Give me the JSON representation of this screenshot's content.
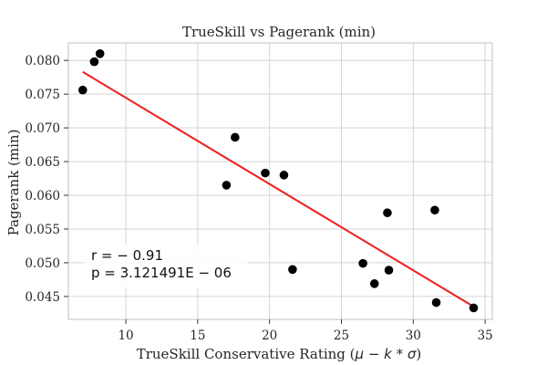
{
  "chart_data": {
    "type": "scatter",
    "title": "TrueSkill vs Pagerank (min)",
    "xlabel_prefix": "TrueSkill Conservative Rating (",
    "xlabel_math": "μ − k * σ",
    "xlabel_suffix": ")",
    "ylabel": "Pagerank (min)",
    "xlim": [
      6.0,
      35.5
    ],
    "ylim": [
      0.0416,
      0.0826
    ],
    "x_ticks": [
      10,
      15,
      20,
      25,
      30,
      35
    ],
    "x_tick_labels": [
      "10",
      "15",
      "20",
      "25",
      "30",
      "35"
    ],
    "y_ticks": [
      0.045,
      0.05,
      0.055,
      0.06,
      0.065,
      0.07,
      0.075,
      0.08
    ],
    "y_tick_labels": [
      "0.045",
      "0.050",
      "0.055",
      "0.060",
      "0.065",
      "0.070",
      "0.075",
      "0.080"
    ],
    "grid": true,
    "points": [
      {
        "x": 7.0,
        "y": 0.0756
      },
      {
        "x": 7.8,
        "y": 0.0798
      },
      {
        "x": 8.2,
        "y": 0.081
      },
      {
        "x": 17.0,
        "y": 0.0615
      },
      {
        "x": 17.6,
        "y": 0.0686
      },
      {
        "x": 19.7,
        "y": 0.0633
      },
      {
        "x": 21.0,
        "y": 0.063
      },
      {
        "x": 21.6,
        "y": 0.049
      },
      {
        "x": 26.5,
        "y": 0.0499
      },
      {
        "x": 27.3,
        "y": 0.0469
      },
      {
        "x": 28.2,
        "y": 0.0574
      },
      {
        "x": 28.3,
        "y": 0.0489
      },
      {
        "x": 31.5,
        "y": 0.0578
      },
      {
        "x": 31.6,
        "y": 0.0441
      },
      {
        "x": 34.2,
        "y": 0.0433
      }
    ],
    "marker_color": "#000000",
    "fit_line": {
      "color": "#ee1c1c",
      "x": [
        7.0,
        34.2
      ],
      "y": [
        0.0783,
        0.0435
      ]
    },
    "annotation": {
      "r_line": "r = − 0.91",
      "p_line": "p = 3.121491E − 06"
    }
  }
}
